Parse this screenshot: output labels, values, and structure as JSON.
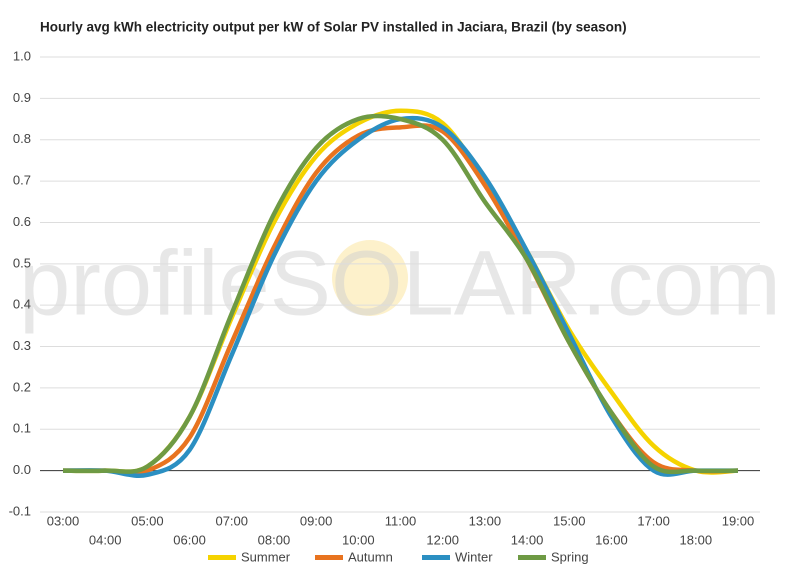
{
  "chart_data": {
    "type": "line",
    "title": "Hourly avg kWh electricity output per kW of Solar PV installed in Jaciara, Brazil (by season)",
    "watermark": "profileSOLAR.com",
    "categories": [
      "03:00",
      "04:00",
      "05:00",
      "06:00",
      "07:00",
      "08:00",
      "09:00",
      "10:00",
      "11:00",
      "12:00",
      "13:00",
      "14:00",
      "15:00",
      "16:00",
      "17:00",
      "18:00",
      "19:00"
    ],
    "series": [
      {
        "name": "Summer",
        "color": "#f5d300",
        "values": [
          0,
          0,
          0.01,
          0.13,
          0.37,
          0.6,
          0.76,
          0.84,
          0.87,
          0.84,
          0.7,
          0.53,
          0.34,
          0.19,
          0.06,
          0.0,
          0
        ]
      },
      {
        "name": "Autumn",
        "color": "#e8731f",
        "values": [
          0,
          0,
          0,
          0.08,
          0.31,
          0.54,
          0.72,
          0.81,
          0.83,
          0.82,
          0.69,
          0.51,
          0.31,
          0.14,
          0.02,
          0,
          0
        ]
      },
      {
        "name": "Winter",
        "color": "#2b8fc2",
        "values": [
          0,
          0,
          -0.01,
          0.05,
          0.28,
          0.52,
          0.7,
          0.8,
          0.85,
          0.83,
          0.71,
          0.53,
          0.33,
          0.13,
          0.0,
          0,
          0
        ]
      },
      {
        "name": "Spring",
        "color": "#6e9a44",
        "values": [
          0,
          0,
          0.01,
          0.13,
          0.38,
          0.62,
          0.78,
          0.85,
          0.85,
          0.8,
          0.65,
          0.51,
          0.31,
          0.14,
          0.01,
          0,
          0
        ]
      }
    ],
    "ylim": [
      -0.1,
      1.0
    ],
    "yticks": [
      -0.1,
      {
        "value": 0,
        "label": "0.0"
      },
      0.1,
      0.2,
      0.3,
      0.4,
      0.5,
      0.6,
      0.7,
      0.8,
      0.9,
      {
        "value": 1,
        "label": "1.0"
      }
    ],
    "grid": true,
    "legend": "bottom"
  }
}
